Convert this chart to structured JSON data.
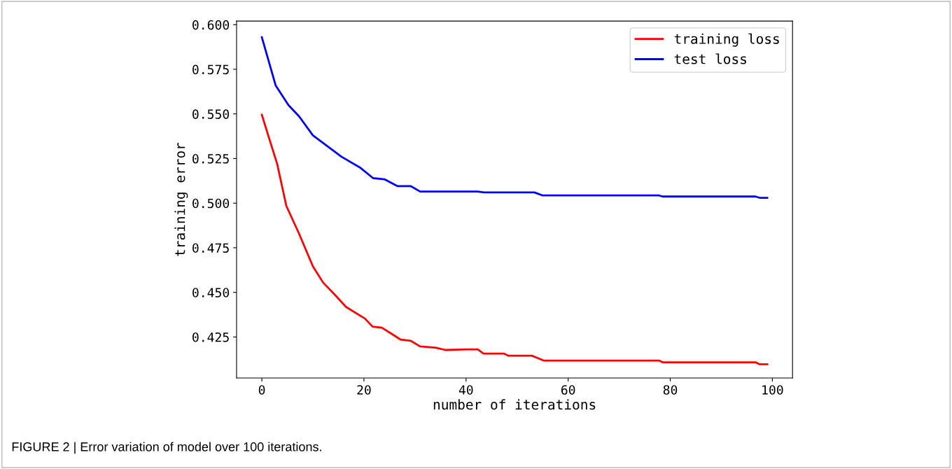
{
  "chart_data": {
    "type": "line",
    "xlabel": "number of iterations",
    "ylabel": "training error",
    "xlim": [
      -4.95,
      103.95
    ],
    "xticks": [
      0,
      20,
      40,
      60,
      80,
      100
    ],
    "ylim": [
      0.402,
      0.602
    ],
    "yticks": [
      0.425,
      {
        "value": 0.45,
        "label": "0.450"
      },
      0.475,
      {
        "value": 0.5,
        "label": "0.500"
      },
      0.525,
      {
        "value": 0.55,
        "label": "0.550"
      },
      0.575,
      {
        "value": 0.6,
        "label": "0.600"
      }
    ],
    "legend": "top right",
    "grid": false,
    "annotations": [
      "FIGURE 2 | Error variation of model over 100 iterations."
    ],
    "series": [
      {
        "name": "training loss",
        "color": "#ff0000",
        "x": [
          0,
          1.3,
          3,
          4.8,
          7.3,
          10,
          12,
          14.2,
          16.5,
          20.2,
          21.7,
          23.5,
          25.4,
          27.2,
          29.2,
          31,
          34,
          36,
          40,
          42.3,
          43.4,
          47.4,
          48.3,
          52.9,
          55.2,
          77.8,
          78.5,
          96.7,
          97.5,
          99
        ],
        "values": [
          0.5495,
          0.5375,
          0.522,
          0.4984,
          0.4828,
          0.4646,
          0.4555,
          0.449,
          0.4418,
          0.4353,
          0.4308,
          0.4302,
          0.4268,
          0.4235,
          0.4228,
          0.4197,
          0.419,
          0.4177,
          0.418,
          0.418,
          0.4157,
          0.4157,
          0.4145,
          0.4145,
          0.4118,
          0.4118,
          0.4108,
          0.4108,
          0.4097,
          0.4097
        ]
      },
      {
        "name": "test loss",
        "color": "#0000ff",
        "x": [
          0,
          2.7,
          5.2,
          7.3,
          10,
          12.8,
          15.6,
          19.2,
          21.8,
          24,
          26.6,
          29.2,
          31,
          42.3,
          43.5,
          53.4,
          55,
          77.8,
          78.5,
          96.7,
          97.5,
          99
        ],
        "values": [
          0.593,
          0.566,
          0.555,
          0.5486,
          0.538,
          0.532,
          0.526,
          0.52,
          0.514,
          0.5134,
          0.5095,
          0.5095,
          0.5065,
          0.5065,
          0.506,
          0.506,
          0.5043,
          0.5043,
          0.5037,
          0.5037,
          0.503,
          0.503
        ]
      }
    ]
  }
}
